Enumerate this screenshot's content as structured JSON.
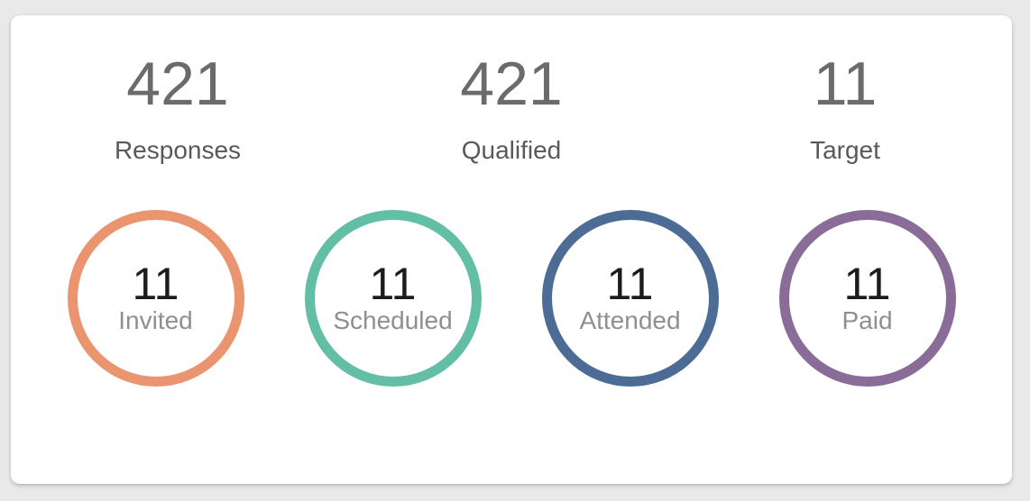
{
  "page": {
    "background_color": "#e9e9e9",
    "card_background_color": "#ffffff"
  },
  "summary_stats": [
    {
      "value": "421",
      "label": "Responses"
    },
    {
      "value": "421",
      "label": "Qualified"
    },
    {
      "value": "11",
      "label": "Target"
    }
  ],
  "funnel_stats": [
    {
      "value": "11",
      "label": "Invited",
      "color": "#eb9470"
    },
    {
      "value": "11",
      "label": "Scheduled",
      "color": "#62bea4"
    },
    {
      "value": "11",
      "label": "Attended",
      "color": "#4c6b95"
    },
    {
      "value": "11",
      "label": "Paid",
      "color": "#8a6c99"
    }
  ]
}
